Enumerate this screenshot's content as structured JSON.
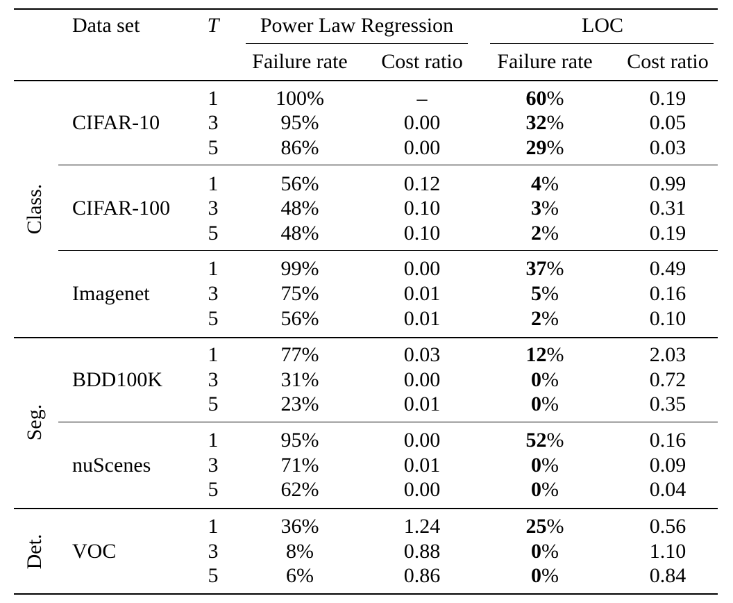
{
  "header": {
    "dataset": "Data set",
    "t": "T",
    "plr": "Power Law Regression",
    "loc": "LOC",
    "plr_fail": "Failure rate",
    "plr_cost": "Cost ratio",
    "loc_fail": "Failure rate",
    "loc_cost": "Cost ratio"
  },
  "groups": [
    {
      "label": "Class.",
      "blocks": [
        {
          "name": "CIFAR-10",
          "rows": [
            {
              "t": "1",
              "plr_fail": "100%",
              "plr_cost": "–",
              "loc_fail_num": "60",
              "loc_fail_pct": "%",
              "loc_cost": "0.19"
            },
            {
              "t": "3",
              "plr_fail": "95%",
              "plr_cost": "0.00",
              "loc_fail_num": "32",
              "loc_fail_pct": "%",
              "loc_cost": "0.05"
            },
            {
              "t": "5",
              "plr_fail": "86%",
              "plr_cost": "0.00",
              "loc_fail_num": "29",
              "loc_fail_pct": "%",
              "loc_cost": "0.03"
            }
          ]
        },
        {
          "name": "CIFAR-100",
          "rows": [
            {
              "t": "1",
              "plr_fail": "56%",
              "plr_cost": "0.12",
              "loc_fail_num": "4",
              "loc_fail_pct": "%",
              "loc_cost": "0.99"
            },
            {
              "t": "3",
              "plr_fail": "48%",
              "plr_cost": "0.10",
              "loc_fail_num": "3",
              "loc_fail_pct": "%",
              "loc_cost": "0.31"
            },
            {
              "t": "5",
              "plr_fail": "48%",
              "plr_cost": "0.10",
              "loc_fail_num": "2",
              "loc_fail_pct": "%",
              "loc_cost": "0.19"
            }
          ]
        },
        {
          "name": "Imagenet",
          "rows": [
            {
              "t": "1",
              "plr_fail": "99%",
              "plr_cost": "0.00",
              "loc_fail_num": "37",
              "loc_fail_pct": "%",
              "loc_cost": "0.49"
            },
            {
              "t": "3",
              "plr_fail": "75%",
              "plr_cost": "0.01",
              "loc_fail_num": "5",
              "loc_fail_pct": "%",
              "loc_cost": "0.16"
            },
            {
              "t": "5",
              "plr_fail": "56%",
              "plr_cost": "0.01",
              "loc_fail_num": "2",
              "loc_fail_pct": "%",
              "loc_cost": "0.10"
            }
          ]
        }
      ]
    },
    {
      "label": "Seg.",
      "blocks": [
        {
          "name": "BDD100K",
          "rows": [
            {
              "t": "1",
              "plr_fail": "77%",
              "plr_cost": "0.03",
              "loc_fail_num": "12",
              "loc_fail_pct": "%",
              "loc_cost": "2.03"
            },
            {
              "t": "3",
              "plr_fail": "31%",
              "plr_cost": "0.00",
              "loc_fail_num": "0",
              "loc_fail_pct": "%",
              "loc_cost": "0.72"
            },
            {
              "t": "5",
              "plr_fail": "23%",
              "plr_cost": "0.01",
              "loc_fail_num": "0",
              "loc_fail_pct": "%",
              "loc_cost": "0.35"
            }
          ]
        },
        {
          "name": "nuScenes",
          "rows": [
            {
              "t": "1",
              "plr_fail": "95%",
              "plr_cost": "0.00",
              "loc_fail_num": "52",
              "loc_fail_pct": "%",
              "loc_cost": "0.16"
            },
            {
              "t": "3",
              "plr_fail": "71%",
              "plr_cost": "0.01",
              "loc_fail_num": "0",
              "loc_fail_pct": "%",
              "loc_cost": "0.09"
            },
            {
              "t": "5",
              "plr_fail": "62%",
              "plr_cost": "0.00",
              "loc_fail_num": "0",
              "loc_fail_pct": "%",
              "loc_cost": "0.04"
            }
          ]
        }
      ]
    },
    {
      "label": "Det.",
      "blocks": [
        {
          "name": "VOC",
          "rows": [
            {
              "t": "1",
              "plr_fail": "36%",
              "plr_cost": "1.24",
              "loc_fail_num": "25",
              "loc_fail_pct": "%",
              "loc_cost": "0.56"
            },
            {
              "t": "3",
              "plr_fail": "8%",
              "plr_cost": "0.88",
              "loc_fail_num": "0",
              "loc_fail_pct": "%",
              "loc_cost": "1.10"
            },
            {
              "t": "5",
              "plr_fail": "6%",
              "plr_cost": "0.86",
              "loc_fail_num": "0",
              "loc_fail_pct": "%",
              "loc_cost": "0.84"
            }
          ]
        }
      ]
    }
  ]
}
